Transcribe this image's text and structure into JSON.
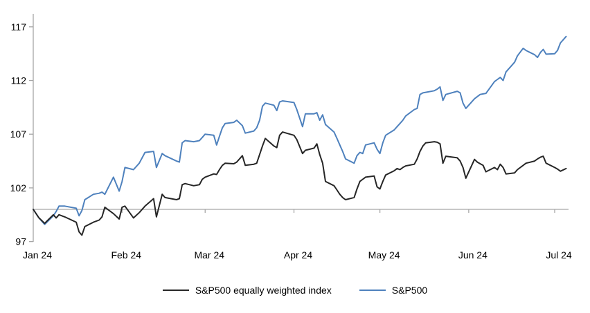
{
  "chart_data": {
    "type": "line",
    "title": "",
    "x_axis": {
      "labels": [
        "Jan 24",
        "Feb 24",
        "Mar 24",
        "Apr 24",
        "May 24",
        "Jun 24",
        "Jul 24"
      ],
      "range_days": 182
    },
    "y_axis": {
      "ticks": [
        97,
        102,
        107,
        112,
        117
      ],
      "min": 97,
      "max": 117,
      "baseline": 100
    },
    "grid": "baseline-only",
    "legend_position": "bottom",
    "categories": [
      "01-01",
      "01-03",
      "01-05",
      "01-08",
      "01-09",
      "01-10",
      "01-12",
      "01-16",
      "01-17",
      "01-18",
      "01-19",
      "01-22",
      "01-24",
      "01-25",
      "01-26",
      "01-29",
      "01-31",
      "02-01",
      "02-02",
      "02-05",
      "02-07",
      "02-09",
      "02-12",
      "02-13",
      "02-15",
      "02-16",
      "02-20",
      "02-21",
      "02-22",
      "02-23",
      "02-26",
      "02-28",
      "02-29",
      "03-01",
      "03-04",
      "03-05",
      "03-06",
      "03-07",
      "03-08",
      "03-11",
      "03-12",
      "03-14",
      "03-15",
      "03-18",
      "03-19",
      "03-20",
      "03-21",
      "03-22",
      "03-25",
      "03-26",
      "03-27",
      "03-28",
      "04-01",
      "04-02",
      "04-04",
      "04-05",
      "04-08",
      "04-09",
      "04-10",
      "04-11",
      "04-12",
      "04-15",
      "04-16",
      "04-17",
      "04-18",
      "04-19",
      "04-22",
      "04-23",
      "04-24",
      "04-25",
      "04-26",
      "04-29",
      "04-30",
      "05-01",
      "05-02",
      "05-03",
      "05-06",
      "05-07",
      "05-08",
      "05-09",
      "05-10",
      "05-13",
      "05-14",
      "05-15",
      "05-16",
      "05-17",
      "05-20",
      "05-21",
      "05-22",
      "05-23",
      "05-24",
      "05-28",
      "05-29",
      "05-30",
      "05-31",
      "06-03",
      "06-04",
      "06-05",
      "06-06",
      "06-07",
      "06-10",
      "06-11",
      "06-12",
      "06-13",
      "06-14",
      "06-17",
      "06-18",
      "06-20",
      "06-21",
      "06-24",
      "06-25",
      "06-26",
      "06-27",
      "06-28",
      "07-01",
      "07-02",
      "07-03",
      "07-05"
    ],
    "series": [
      {
        "name": "S&P500 equally weighted index",
        "color": "#262626",
        "values": [
          100.0,
          99.2,
          98.7,
          99.5,
          99.2,
          99.5,
          99.3,
          98.8,
          97.9,
          97.6,
          98.4,
          98.8,
          99.0,
          99.3,
          100.2,
          99.6,
          99.1,
          100.2,
          100.3,
          99.2,
          99.7,
          100.3,
          101.0,
          99.3,
          101.4,
          101.1,
          100.9,
          101.0,
          102.3,
          102.4,
          102.2,
          102.3,
          102.8,
          103.0,
          103.3,
          103.25,
          103.7,
          104.1,
          104.3,
          104.25,
          104.4,
          105.0,
          104.1,
          104.2,
          104.3,
          105.1,
          105.9,
          106.6,
          105.9,
          105.75,
          106.9,
          107.2,
          106.9,
          106.5,
          105.2,
          105.5,
          105.7,
          106.1,
          105.1,
          104.3,
          102.6,
          102.2,
          101.8,
          101.4,
          101.1,
          100.9,
          101.1,
          101.9,
          102.6,
          102.8,
          103.0,
          103.1,
          102.1,
          101.9,
          102.6,
          103.2,
          103.6,
          103.8,
          103.7,
          103.9,
          104.05,
          104.2,
          104.7,
          105.4,
          105.9,
          106.2,
          106.3,
          106.25,
          106.1,
          104.3,
          104.95,
          104.8,
          104.5,
          103.9,
          102.9,
          104.65,
          104.4,
          104.25,
          104.1,
          103.5,
          103.9,
          103.7,
          104.2,
          103.9,
          103.3,
          103.4,
          103.7,
          104.1,
          104.3,
          104.5,
          104.7,
          104.85,
          104.95,
          104.3,
          103.9,
          103.75,
          103.55,
          103.8
        ]
      },
      {
        "name": "S&P500",
        "color": "#4e81bd",
        "values": [
          100.0,
          99.2,
          98.6,
          99.4,
          99.8,
          100.3,
          100.3,
          100.1,
          99.4,
          99.9,
          100.9,
          101.4,
          101.5,
          101.6,
          101.4,
          103.0,
          101.7,
          102.6,
          103.9,
          103.7,
          104.3,
          105.3,
          105.4,
          103.9,
          105.2,
          105.0,
          104.5,
          104.4,
          106.2,
          106.4,
          106.3,
          106.4,
          106.7,
          107.0,
          106.9,
          106.0,
          106.8,
          107.6,
          108.0,
          108.1,
          108.3,
          107.8,
          107.1,
          107.3,
          107.6,
          108.3,
          109.6,
          109.9,
          109.7,
          109.2,
          110.0,
          110.1,
          109.95,
          109.3,
          107.7,
          108.9,
          108.9,
          109.0,
          108.3,
          108.8,
          107.9,
          107.2,
          106.6,
          106.0,
          105.4,
          104.7,
          104.3,
          105.0,
          105.3,
          105.2,
          106.0,
          106.2,
          105.6,
          105.2,
          106.2,
          106.9,
          107.4,
          107.7,
          108.0,
          108.3,
          108.7,
          109.3,
          109.4,
          110.7,
          110.85,
          110.9,
          111.05,
          111.2,
          111.4,
          110.15,
          110.7,
          111.0,
          110.85,
          109.9,
          109.4,
          110.3,
          110.5,
          110.7,
          110.75,
          110.8,
          111.9,
          112.1,
          112.3,
          112.0,
          112.8,
          113.7,
          114.3,
          115.0,
          114.8,
          114.4,
          114.15,
          114.6,
          114.9,
          114.45,
          114.5,
          114.8,
          115.5,
          116.1
        ]
      }
    ],
    "colors": {
      "axis_gray": "#a6a6a6",
      "tick_label": "#000000"
    }
  }
}
